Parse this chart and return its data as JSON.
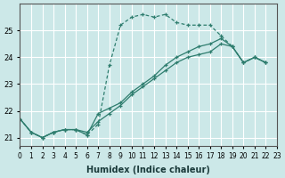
{
  "xlabel": "Humidex (Indice chaleur)",
  "ylabel": "",
  "bg_color": "#cce8e8",
  "line_color": "#2e7d6e",
  "grid_color": "#ffffff",
  "xlim": [
    0,
    23
  ],
  "ylim": [
    21,
    26
  ],
  "yticks": [
    21,
    22,
    23,
    24,
    25
  ],
  "xticks": [
    0,
    1,
    2,
    3,
    4,
    5,
    6,
    7,
    8,
    9,
    10,
    11,
    12,
    13,
    14,
    15,
    16,
    17,
    18,
    19,
    20,
    21,
    22,
    23
  ],
  "series": [
    [
      21.7,
      21.2,
      21.0,
      21.2,
      21.3,
      21.3,
      21.1,
      21.5,
      23.7,
      25.2,
      25.5,
      25.6,
      25.5,
      25.6,
      25.3,
      25.2,
      25.2,
      25.2,
      24.8,
      24.4,
      23.8,
      24.0,
      23.8
    ],
    [
      21.7,
      21.2,
      21.0,
      21.2,
      21.3,
      21.3,
      21.1,
      21.9,
      22.1,
      22.3,
      22.7,
      23.0,
      23.3,
      23.7,
      24.0,
      24.2,
      24.4,
      24.5,
      24.7,
      24.4,
      23.8,
      24.0,
      23.8
    ],
    [
      21.7,
      21.2,
      21.0,
      21.2,
      21.3,
      21.3,
      21.2,
      21.6,
      21.9,
      22.2,
      22.6,
      22.9,
      23.2,
      23.5,
      23.8,
      24.0,
      24.1,
      24.2,
      24.5,
      24.4,
      23.8,
      24.0,
      23.8
    ]
  ],
  "markers_x": [
    0,
    1,
    2,
    3,
    4,
    5,
    6,
    7,
    8,
    9,
    10,
    11,
    12,
    13,
    14,
    15,
    16,
    17,
    18,
    19,
    20,
    21,
    22
  ]
}
